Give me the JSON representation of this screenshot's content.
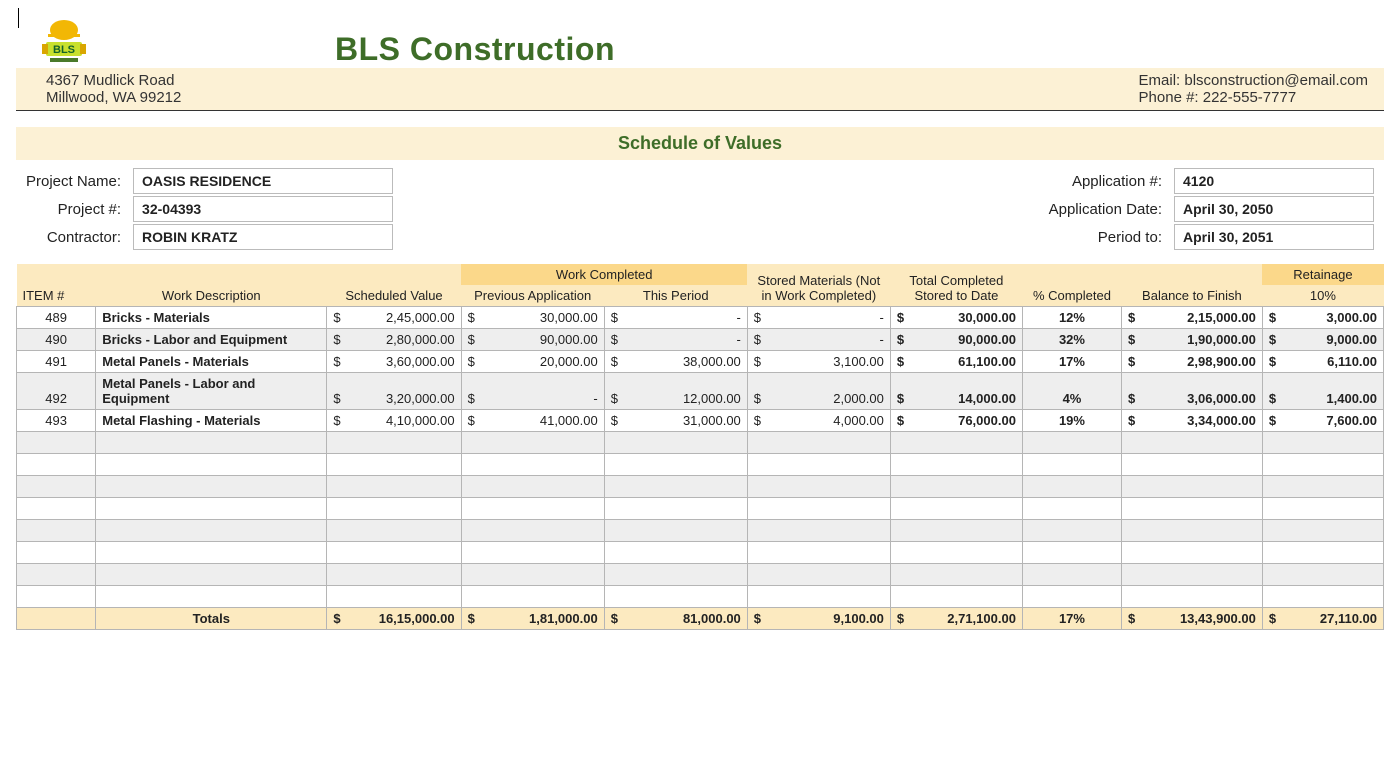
{
  "company": {
    "name": "BLS Construction",
    "logo_text": "BLS",
    "logo_hat": "#f2b705",
    "logo_plate": "#c8e02e",
    "logo_textcolor": "#14622a",
    "addr_line1": "4367 Mudlick Road",
    "addr_line2": "Millwood, WA 99212",
    "email": "Email: blsconstruction@email.com",
    "phone": "Phone #: 222-555-7777"
  },
  "section_title": "Schedule of Values",
  "meta": {
    "project_name_label": "Project Name:",
    "project_name": "OASIS RESIDENCE",
    "project_num_label": "Project #:",
    "project_num": "32-04393",
    "contractor_label": "Contractor:",
    "contractor": "ROBIN KRATZ",
    "app_num_label": "Application #:",
    "app_num": "4120",
    "app_date_label": "Application Date:",
    "app_date": "April 30, 2050",
    "period_to_label": "Period to:",
    "period_to": "April 30, 2051"
  },
  "headers": {
    "work_completed": "Work Completed",
    "stored": "Stored Materials (Not in Work Completed)",
    "total_stored": "Total Completed Stored to Date",
    "retainage": "Retainage",
    "item": "ITEM #",
    "desc": "Work Description",
    "sched": "Scheduled Value",
    "prev": "Previous Application",
    "period": "This Period",
    "pct": "% Completed",
    "bal": "Balance to Finish",
    "ret_pct": "10%"
  },
  "rows": [
    {
      "item": "489",
      "desc": "Bricks - Materials",
      "sched": "2,45,000.00",
      "prev": "30,000.00",
      "period": "-",
      "stored": "-",
      "total": "30,000.00",
      "pct": "12%",
      "bal": "2,15,000.00",
      "ret": "3,000.00"
    },
    {
      "item": "490",
      "desc": "Bricks - Labor and Equipment",
      "sched": "2,80,000.00",
      "prev": "90,000.00",
      "period": "-",
      "stored": "-",
      "total": "90,000.00",
      "pct": "32%",
      "bal": "1,90,000.00",
      "ret": "9,000.00"
    },
    {
      "item": "491",
      "desc": "Metal Panels - Materials",
      "sched": "3,60,000.00",
      "prev": "20,000.00",
      "period": "38,000.00",
      "stored": "3,100.00",
      "total": "61,100.00",
      "pct": "17%",
      "bal": "2,98,900.00",
      "ret": "6,110.00"
    },
    {
      "item": "492",
      "desc": "Metal Panels - Labor and Equipment",
      "sched": "3,20,000.00",
      "prev": "-",
      "period": "12,000.00",
      "stored": "2,000.00",
      "total": "14,000.00",
      "pct": "4%",
      "bal": "3,06,000.00",
      "ret": "1,400.00"
    },
    {
      "item": "493",
      "desc": "Metal Flashing - Materials",
      "sched": "4,10,000.00",
      "prev": "41,000.00",
      "period": "31,000.00",
      "stored": "4,000.00",
      "total": "76,000.00",
      "pct": "19%",
      "bal": "3,34,000.00",
      "ret": "7,600.00"
    }
  ],
  "empty_rows": 8,
  "totals": {
    "label": "Totals",
    "sched": "16,15,000.00",
    "prev": "1,81,000.00",
    "period": "81,000.00",
    "stored": "9,100.00",
    "total": "2,71,100.00",
    "pct": "17%",
    "bal": "13,43,900.00",
    "ret": "27,110.00"
  },
  "colors": {
    "heading": "#3e6d28",
    "band_light": "#fcf1d5",
    "band_dark": "#fbd88a",
    "header_bg": "#fceac0",
    "row_alt": "#eeeeee",
    "border": "#b5b5b5"
  }
}
